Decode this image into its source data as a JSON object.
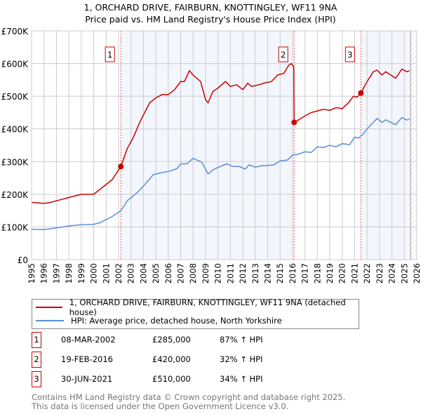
{
  "chart_data": {
    "type": "line",
    "title": "1, ORCHARD DRIVE, FAIRBURN, KNOTTINGLEY, WF11 9NA",
    "subtitle": "Price paid vs. HM Land Registry's House Price Index (HPI)",
    "xlim": [
      1995,
      2026
    ],
    "ylim": [
      0,
      700000
    ],
    "yticks": [
      {
        "v": 0,
        "l": "£0"
      },
      {
        "v": 100000,
        "l": "£100K"
      },
      {
        "v": 200000,
        "l": "£200K"
      },
      {
        "v": 300000,
        "l": "£300K"
      },
      {
        "v": 400000,
        "l": "£400K"
      },
      {
        "v": 500000,
        "l": "£500K"
      },
      {
        "v": 600000,
        "l": "£600K"
      },
      {
        "v": 700000,
        "l": "£700K"
      }
    ],
    "xticks": [
      "1995",
      "1996",
      "1997",
      "1998",
      "1999",
      "2000",
      "2001",
      "2002",
      "2003",
      "2004",
      "2005",
      "2006",
      "2007",
      "2008",
      "2009",
      "2010",
      "2011",
      "2012",
      "2013",
      "2014",
      "2015",
      "2016",
      "2017",
      "2018",
      "2019",
      "2020",
      "2021",
      "2022",
      "2023",
      "2024",
      "2025",
      "2026"
    ],
    "grid": true,
    "series": [
      {
        "name": "1, ORCHARD DRIVE, FAIRBURN, KNOTTINGLEY, WF11 9NA (detached house)",
        "color": "#cc0000",
        "x": [
          1995,
          1996,
          1996.5,
          1997,
          1998,
          1999,
          2000,
          2000.5,
          2001.5,
          2002.18,
          2002.7,
          2003.2,
          2003.7,
          2004.5,
          2005,
          2005.5,
          2006,
          2006.5,
          2007,
          2007.3,
          2007.7,
          2008,
          2008.6,
          2009,
          2009.2,
          2009.6,
          2010,
          2010.6,
          2011,
          2011.5,
          2012,
          2012.4,
          2012.7,
          2013.3,
          2013.7,
          2014.3,
          2014.8,
          2015.3,
          2015.7,
          2015.9,
          2016.1,
          2016.13,
          2016.5,
          2017,
          2017.5,
          2018,
          2018.5,
          2019,
          2019.5,
          2020,
          2020.5,
          2020.9,
          2021.2,
          2021.5,
          2022,
          2022.5,
          2022.8,
          2023.2,
          2023.5,
          2023.9,
          2024.3,
          2024.8,
          2025.2,
          2025.4
        ],
        "y": [
          175000,
          172000,
          175000,
          180000,
          190000,
          200000,
          200000,
          215000,
          245000,
          285000,
          340000,
          375000,
          420000,
          480000,
          495000,
          505000,
          505000,
          520000,
          545000,
          545000,
          578000,
          565000,
          545000,
          490000,
          480000,
          515000,
          525000,
          545000,
          530000,
          535000,
          520000,
          540000,
          530000,
          535000,
          540000,
          545000,
          565000,
          570000,
          595000,
          600000,
          590000,
          420000,
          428000,
          440000,
          450000,
          455000,
          460000,
          457000,
          465000,
          462000,
          480000,
          500000,
          497000,
          510000,
          545000,
          575000,
          580000,
          565000,
          575000,
          565000,
          555000,
          583000,
          575000,
          578000
        ]
      },
      {
        "name": "HPI: Average price, detached house, North Yorkshire",
        "color": "#5b8fd4",
        "x": [
          1995,
          1996,
          1997,
          1998,
          1999,
          2000,
          2000.5,
          2001.5,
          2002.2,
          2002.7,
          2003.5,
          2004,
          2004.8,
          2005.3,
          2006,
          2006.7,
          2007,
          2007.5,
          2007.7,
          2008,
          2008.7,
          2009.2,
          2009.6,
          2010,
          2010.7,
          2011.2,
          2011.7,
          2012.2,
          2012.5,
          2013,
          2013.5,
          2014,
          2014.5,
          2015,
          2015.6,
          2016,
          2016.5,
          2017,
          2017.5,
          2018,
          2018.5,
          2019,
          2019.5,
          2020,
          2020.6,
          2021,
          2021.3,
          2021.7,
          2022,
          2022.5,
          2022.8,
          2023.2,
          2023.5,
          2024,
          2024.3,
          2024.8,
          2025.2,
          2025.4
        ],
        "y": [
          93000,
          92000,
          97000,
          103000,
          107000,
          108000,
          113000,
          132000,
          150000,
          180000,
          205000,
          225000,
          260000,
          265000,
          270000,
          278000,
          293000,
          293000,
          300000,
          310000,
          298000,
          262000,
          275000,
          282000,
          293000,
          285000,
          285000,
          277000,
          290000,
          283000,
          287000,
          288000,
          290000,
          302000,
          305000,
          320000,
          323000,
          330000,
          328000,
          345000,
          343000,
          350000,
          345000,
          355000,
          352000,
          375000,
          372000,
          385000,
          400000,
          420000,
          432000,
          420000,
          428000,
          418000,
          413000,
          435000,
          427000,
          430000
        ]
      }
    ],
    "transactions": [
      {
        "n": "1",
        "x": 2002.18,
        "date": "08-MAR-2002",
        "price": 285000,
        "price_label": "£285,000",
        "hpi": "87% ↑ HPI"
      },
      {
        "n": "2",
        "x": 2016.13,
        "date": "19-FEB-2016",
        "price": 420000,
        "price_label": "£420,000",
        "hpi": "32% ↑ HPI"
      },
      {
        "n": "3",
        "x": 2021.5,
        "date": "30-JUN-2021",
        "price": 510000,
        "price_label": "£510,000",
        "hpi": "34% ↑ HPI"
      }
    ],
    "legend_position": "below"
  },
  "footer": {
    "line1": "Contains HM Land Registry data © Crown copyright and database right 2025.",
    "line2": "This data is licensed under the Open Government Licence v3.0."
  }
}
